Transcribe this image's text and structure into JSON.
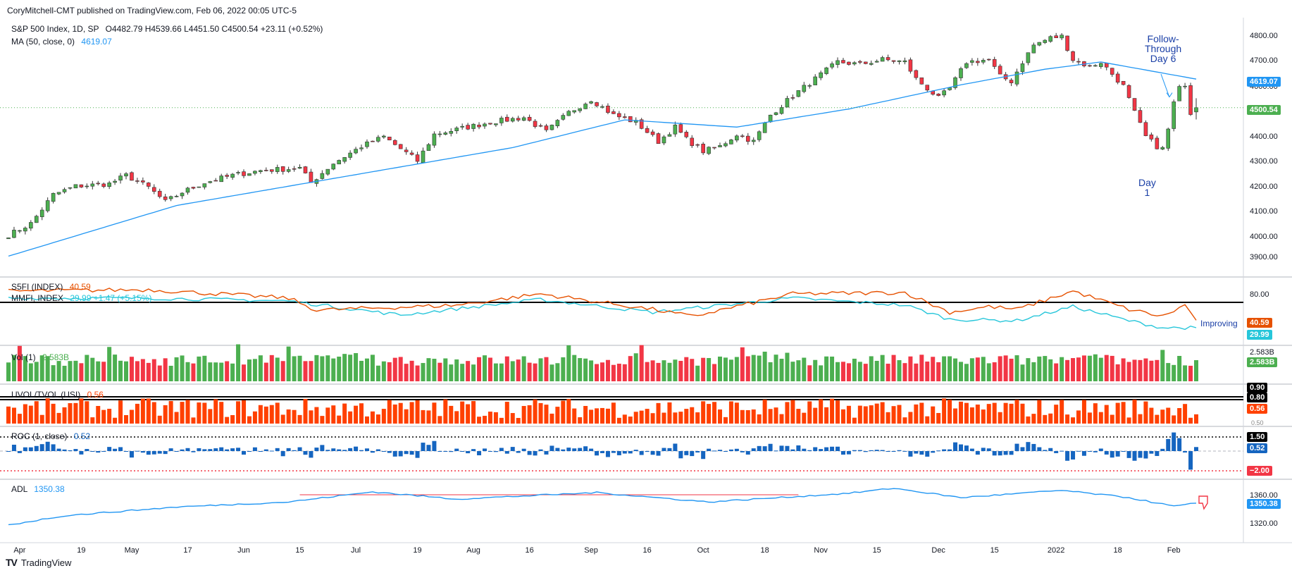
{
  "header": {
    "text": "CoryMitchell-CMT published on TradingView.com, Feb 06, 2022 00:05 UTC-5"
  },
  "footer": {
    "brand": "TradingView",
    "logo": "TV"
  },
  "colors": {
    "up": "#4caf50",
    "down": "#f23645",
    "ma": "#2196f3",
    "s5fi": "#e65100",
    "mmfi": "#26c6da",
    "vol_up": "#4caf50",
    "vol_down": "#f23645",
    "uvol": "#ff4000",
    "roc": "#1565c0",
    "adl": "#2196f3"
  },
  "panes": {
    "price": {
      "legend": {
        "symbol": "S&P 500 Index, 1D, SP",
        "o": "O4482.79",
        "h": "H4539.66",
        "l": "L4451.50",
        "c": "C4500.54",
        "chg": "+23.11 (+0.52%)"
      },
      "ma_legend": {
        "label": "MA (50, close, 0)",
        "value": "4619.07"
      },
      "axis_ticks": [
        "4800.00",
        "4700.00",
        "4600.00",
        "4500.00",
        "4400.00",
        "4300.00",
        "4200.00",
        "4100.00",
        "4000.00",
        "3900.00"
      ],
      "badges": {
        "ma": "4619.07",
        "close": "4500.54"
      },
      "annotations": {
        "ftd": [
          "Follow-",
          "Through",
          "Day 6"
        ],
        "day1": [
          "Day",
          "1"
        ]
      }
    },
    "breadth": {
      "s5fi_legend": {
        "label": "S5FI (INDEX)",
        "value": "40.59"
      },
      "mmfi_legend": {
        "label": "MMFI, INDEX",
        "value": "29.99",
        "chg": "+1.47 (+5.15%)"
      },
      "axis_ticks": [
        "80.00"
      ],
      "badges": {
        "s5fi": "40.59",
        "mmfi": "29.99"
      },
      "note": "Improving"
    },
    "volume": {
      "legend": {
        "label": "Vol (1)",
        "value": "2.583B"
      },
      "axis_label": "2.583B",
      "badge": "2.583B"
    },
    "uvol": {
      "legend": {
        "label": "UVOL/TVOL (USI)",
        "value": "0.56"
      },
      "badges": {
        "top": "0.90",
        "line": "0.80",
        "val": "0.56"
      },
      "axis_label": "0.50"
    },
    "roc": {
      "legend": {
        "label": "ROC (1, close)",
        "value": "0.52"
      },
      "badges": {
        "upper": "1.50",
        "val": "0.52",
        "lower": "−2.00"
      },
      "axis_label": "0.00"
    },
    "adl": {
      "legend": {
        "label": "ADL",
        "value": "1350.38"
      },
      "axis_ticks": [
        "1360.00",
        "1320.00"
      ],
      "badge": "1350.38"
    }
  },
  "x_axis": [
    {
      "label": "Apr",
      "i": 2
    },
    {
      "label": "19",
      "i": 13
    },
    {
      "label": "May",
      "i": 22
    },
    {
      "label": "17",
      "i": 32
    },
    {
      "label": "Jun",
      "i": 42
    },
    {
      "label": "15",
      "i": 52
    },
    {
      "label": "Jul",
      "i": 62
    },
    {
      "label": "19",
      "i": 73
    },
    {
      "label": "Aug",
      "i": 83
    },
    {
      "label": "16",
      "i": 93
    },
    {
      "label": "Sep",
      "i": 104
    },
    {
      "label": "16",
      "i": 114
    },
    {
      "label": "Oct",
      "i": 124
    },
    {
      "label": "18",
      "i": 135
    },
    {
      "label": "Nov",
      "i": 145
    },
    {
      "label": "15",
      "i": 155
    },
    {
      "label": "Dec",
      "i": 166
    },
    {
      "label": "15",
      "i": 176
    },
    {
      "label": "2022",
      "i": 187
    },
    {
      "label": "18",
      "i": 198
    },
    {
      "label": "Feb",
      "i": 208
    }
  ],
  "chart_data": {
    "type": "line",
    "title": "S&P 500 Index, 1D, SP",
    "x_start": "Mar 31, 2021",
    "x_end": "Feb 04, 2022",
    "ylim": [
      3860,
      4830
    ],
    "close_knots": [
      {
        "i": 0,
        "v": 3972
      },
      {
        "i": 4,
        "v": 4020
      },
      {
        "i": 8,
        "v": 4140
      },
      {
        "i": 12,
        "v": 4175
      },
      {
        "i": 18,
        "v": 4185
      },
      {
        "i": 21,
        "v": 4220
      },
      {
        "i": 25,
        "v": 4170
      },
      {
        "i": 28,
        "v": 4110
      },
      {
        "i": 31,
        "v": 4150
      },
      {
        "i": 35,
        "v": 4190
      },
      {
        "i": 40,
        "v": 4220
      },
      {
        "i": 45,
        "v": 4240
      },
      {
        "i": 52,
        "v": 4250
      },
      {
        "i": 54,
        "v": 4190
      },
      {
        "i": 58,
        "v": 4270
      },
      {
        "i": 63,
        "v": 4340
      },
      {
        "i": 67,
        "v": 4380
      },
      {
        "i": 73,
        "v": 4280
      },
      {
        "i": 76,
        "v": 4390
      },
      {
        "i": 80,
        "v": 4410
      },
      {
        "i": 86,
        "v": 4440
      },
      {
        "i": 92,
        "v": 4460
      },
      {
        "i": 96,
        "v": 4400
      },
      {
        "i": 100,
        "v": 4480
      },
      {
        "i": 104,
        "v": 4535
      },
      {
        "i": 108,
        "v": 4470
      },
      {
        "i": 112,
        "v": 4440
      },
      {
        "i": 116,
        "v": 4360
      },
      {
        "i": 119,
        "v": 4420
      },
      {
        "i": 121,
        "v": 4370
      },
      {
        "i": 124,
        "v": 4320
      },
      {
        "i": 127,
        "v": 4340
      },
      {
        "i": 130,
        "v": 4390
      },
      {
        "i": 133,
        "v": 4360
      },
      {
        "i": 136,
        "v": 4470
      },
      {
        "i": 140,
        "v": 4550
      },
      {
        "i": 144,
        "v": 4620
      },
      {
        "i": 148,
        "v": 4690
      },
      {
        "i": 152,
        "v": 4680
      },
      {
        "i": 156,
        "v": 4700
      },
      {
        "i": 160,
        "v": 4690
      },
      {
        "i": 162,
        "v": 4620
      },
      {
        "i": 164,
        "v": 4580
      },
      {
        "i": 166,
        "v": 4540
      },
      {
        "i": 168,
        "v": 4580
      },
      {
        "i": 171,
        "v": 4690
      },
      {
        "i": 175,
        "v": 4700
      },
      {
        "i": 177,
        "v": 4630
      },
      {
        "i": 179,
        "v": 4610
      },
      {
        "i": 181,
        "v": 4690
      },
      {
        "i": 183,
        "v": 4760
      },
      {
        "i": 186,
        "v": 4790
      },
      {
        "i": 188,
        "v": 4796
      },
      {
        "i": 190,
        "v": 4700
      },
      {
        "i": 193,
        "v": 4670
      },
      {
        "i": 195,
        "v": 4690
      },
      {
        "i": 197,
        "v": 4640
      },
      {
        "i": 199,
        "v": 4590
      },
      {
        "i": 201,
        "v": 4480
      },
      {
        "i": 203,
        "v": 4380
      },
      {
        "i": 205,
        "v": 4340
      },
      {
        "i": 206,
        "v": 4330
      },
      {
        "i": 207,
        "v": 4410
      },
      {
        "i": 208,
        "v": 4520
      },
      {
        "i": 209,
        "v": 4580
      },
      {
        "i": 210,
        "v": 4600
      },
      {
        "i": 211,
        "v": 4480
      },
      {
        "i": 212,
        "v": 4500.54
      }
    ],
    "series": [
      {
        "name": "S&P 500 Index, 1D, SP",
        "kind": "candles",
        "last": {
          "open": 4482.79,
          "high": 4539.66,
          "low": 4451.5,
          "close": 4500.54
        }
      },
      {
        "name": "MA (50, close, 0)",
        "kind": "line",
        "knots": [
          {
            "i": 0,
            "v": 3885
          },
          {
            "i": 30,
            "v": 4095
          },
          {
            "i": 60,
            "v": 4215
          },
          {
            "i": 90,
            "v": 4335
          },
          {
            "i": 110,
            "v": 4450
          },
          {
            "i": 130,
            "v": 4420
          },
          {
            "i": 150,
            "v": 4495
          },
          {
            "i": 170,
            "v": 4595
          },
          {
            "i": 185,
            "v": 4660
          },
          {
            "i": 195,
            "v": 4690
          },
          {
            "i": 212,
            "v": 4619.07
          }
        ],
        "last": 4619.07
      },
      {
        "name": "S5FI (INDEX)",
        "kind": "line",
        "knots": [
          {
            "i": 0,
            "v": 82
          },
          {
            "i": 25,
            "v": 84
          },
          {
            "i": 50,
            "v": 72
          },
          {
            "i": 55,
            "v": 55
          },
          {
            "i": 80,
            "v": 62
          },
          {
            "i": 95,
            "v": 78
          },
          {
            "i": 115,
            "v": 56
          },
          {
            "i": 122,
            "v": 46
          },
          {
            "i": 140,
            "v": 78
          },
          {
            "i": 160,
            "v": 80
          },
          {
            "i": 168,
            "v": 52
          },
          {
            "i": 175,
            "v": 60
          },
          {
            "i": 180,
            "v": 56
          },
          {
            "i": 190,
            "v": 82
          },
          {
            "i": 200,
            "v": 56
          },
          {
            "i": 206,
            "v": 46
          },
          {
            "i": 210,
            "v": 62
          },
          {
            "i": 212,
            "v": 40.59
          }
        ],
        "last": 40.59
      },
      {
        "name": "MMFI, INDEX",
        "kind": "line",
        "knots": [
          {
            "i": 0,
            "v": 72
          },
          {
            "i": 25,
            "v": 72
          },
          {
            "i": 50,
            "v": 68
          },
          {
            "i": 70,
            "v": 48
          },
          {
            "i": 95,
            "v": 70
          },
          {
            "i": 115,
            "v": 52
          },
          {
            "i": 140,
            "v": 72
          },
          {
            "i": 160,
            "v": 62
          },
          {
            "i": 168,
            "v": 42
          },
          {
            "i": 180,
            "v": 40
          },
          {
            "i": 190,
            "v": 60
          },
          {
            "i": 200,
            "v": 40
          },
          {
            "i": 206,
            "v": 30
          },
          {
            "i": 212,
            "v": 29.99
          }
        ],
        "last": 29.99
      },
      {
        "name": "Vol (1)",
        "kind": "bars",
        "last": 2.583,
        "unit": "B"
      },
      {
        "name": "UVOL/TVOL (USI)",
        "kind": "bars",
        "last": 0.56,
        "levels": [
          0.9,
          0.8
        ]
      },
      {
        "name": "ROC (1, close)",
        "kind": "bars",
        "last": 0.52,
        "levels": [
          1.5,
          -2.0
        ]
      },
      {
        "name": "ADL",
        "kind": "line",
        "knots": [
          {
            "i": 0,
            "v": 1320
          },
          {
            "i": 10,
            "v": 1333
          },
          {
            "i": 30,
            "v": 1345
          },
          {
            "i": 50,
            "v": 1352
          },
          {
            "i": 65,
            "v": 1366
          },
          {
            "i": 80,
            "v": 1356
          },
          {
            "i": 105,
            "v": 1365
          },
          {
            "i": 125,
            "v": 1352
          },
          {
            "i": 150,
            "v": 1364
          },
          {
            "i": 158,
            "v": 1371
          },
          {
            "i": 170,
            "v": 1358
          },
          {
            "i": 188,
            "v": 1368
          },
          {
            "i": 200,
            "v": 1358
          },
          {
            "i": 208,
            "v": 1346
          },
          {
            "i": 212,
            "v": 1350.38
          }
        ],
        "last": 1350.38
      }
    ]
  }
}
